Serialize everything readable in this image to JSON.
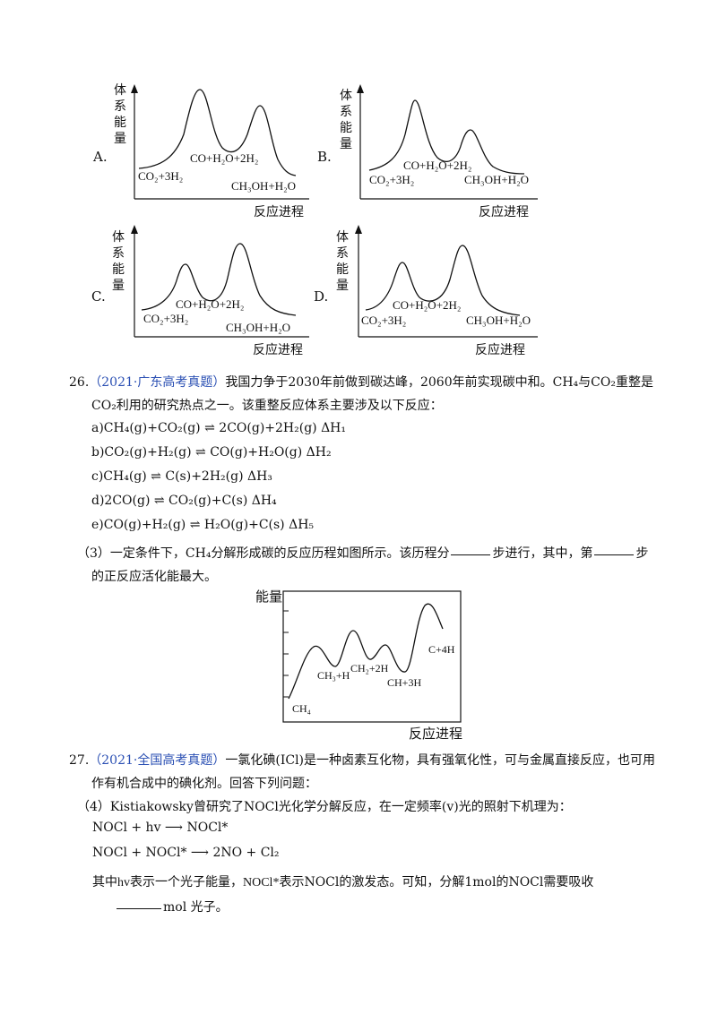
{
  "options": {
    "A": {
      "letter": "A.",
      "y_label": "体系能量",
      "x_label": "反应进程",
      "reactants": "CO₂+3H₂",
      "intermediate": "CO+H₂O+2H₂",
      "products": "CH₃OH+H₂O"
    },
    "B": {
      "letter": "B.",
      "y_label": "体系能量",
      "x_label": "反应进程",
      "reactants": "CO₂+3H₂",
      "intermediate": "CO+H₂O+2H₂",
      "products": "CH₃OH+H₂O"
    },
    "C": {
      "letter": "C.",
      "y_label": "体系能量",
      "x_label": "反应进程",
      "reactants": "CO₂+3H₂",
      "intermediate": "CO+H₂O+2H₂",
      "products": "CH₃OH+H₂O"
    },
    "D": {
      "letter": "D.",
      "y_label": "体系能量",
      "x_label": "反应进程",
      "reactants": "CO₂+3H₂",
      "intermediate": "CO+H₂O+2H₂",
      "products": "CH₃OH+H₂O"
    }
  },
  "q26": {
    "number": "26.",
    "source": "（2021·广东高考真题）",
    "stem_line1": "我国力争于2030年前做到碳达峰，2060年前实现碳中和。CH₄与CO₂重整是",
    "stem_line2": "CO₂利用的研究热点之一。该重整反应体系主要涉及以下反应：",
    "reactions": [
      {
        "lhs": "a)CH₄(g)+CO₂(g)",
        "rhs": "2CO(g)+2H₂(g) ΔH₁"
      },
      {
        "lhs": "b)CO₂(g)+H₂(g)",
        "rhs": "CO(g)+H₂O(g) ΔH₂"
      },
      {
        "lhs": "c)CH₄(g)",
        "rhs": "C(s)+2H₂(g) ΔH₃"
      },
      {
        "lhs": "d)2CO(g)",
        "rhs": "CO₂(g)+C(s) ΔH₄"
      },
      {
        "lhs": "e)CO(g)+H₂(g)",
        "rhs": "H₂O(g)+C(s) ΔH₅"
      }
    ],
    "sub3_a": "（3）一定条件下，CH₄分解形成碳的反应历程如图所示。该历程分",
    "sub3_b": "步进行，其中，第",
    "sub3_c": "步",
    "sub3_line2": "的正反应活化能最大。",
    "figure": {
      "y_label": "能量",
      "x_label": "反应进程",
      "species": [
        "CH₄",
        "CH₃+H",
        "CH₂+2H",
        "CH+3H",
        "C+4H"
      ]
    }
  },
  "q27": {
    "number": "27.",
    "source": "（2021·全国高考真题）",
    "stem_line1": "一氯化碘(ICl)是一种卤素互化物，具有强氧化性，可与金属直接反应，也可用",
    "stem_line2": "作有机合成中的碘化剂。回答下列问题：",
    "sub4": "（4）Kistiakowsky曾研究了NOCl光化学分解反应，在一定频率(v)光的照射下机理为：",
    "eq1_lhs": "NOCl + hv",
    "eq1_rhs": "NOCl*",
    "eq2_lhs": "NOCl + NOCl*",
    "eq2_rhs": "2NO + Cl₂",
    "note_a": "其中",
    "note_hv": "hv",
    "note_b": "表示一个光子能量，",
    "note_nocl": "NOCl*",
    "note_c": "表示NOCl的激发态。可知，分解1mol的NOCl需要吸收",
    "note_d": "mol 光子。"
  }
}
